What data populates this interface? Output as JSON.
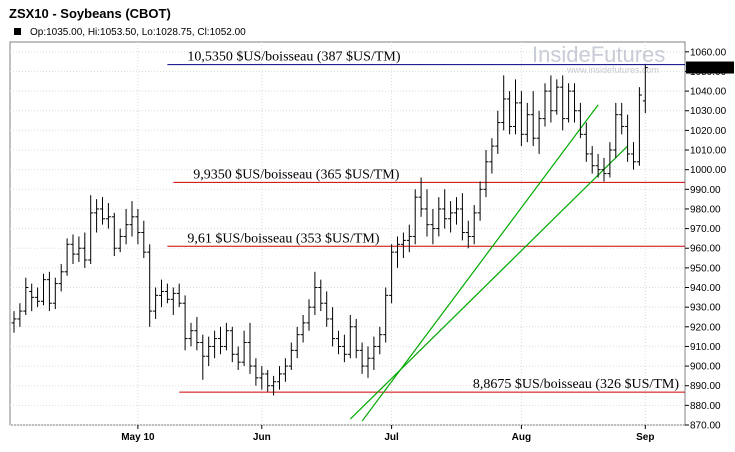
{
  "chart_data": {
    "type": "ohlc",
    "title": "ZSX10 - Soybeans (CBOT)",
    "ohlc_summary": "Op:1035.00, Hi:1053.50, Lo:1028.75, Cl:1052.00",
    "watermark": "InsideFutures",
    "watermark_url": "www.insidefutures.com",
    "last_price_label": "1052.00",
    "last_price": 1052.0,
    "ylim": [
      870,
      1065
    ],
    "yticks": [
      870,
      880,
      890,
      900,
      910,
      920,
      930,
      940,
      950,
      960,
      970,
      980,
      990,
      1000,
      1010,
      1020,
      1030,
      1040,
      1050,
      1060
    ],
    "grid": true,
    "x_labels": [
      {
        "label": "May 10",
        "index": 21
      },
      {
        "label": "Jun",
        "index": 42
      },
      {
        "label": "Jul",
        "index": 64
      },
      {
        "label": "Aug",
        "index": 86
      },
      {
        "label": "Sep",
        "index": 107
      }
    ],
    "levels": [
      {
        "label": "10,5350 $US/boisseau (387 $US/TM)",
        "value": 1053.5,
        "color": "#000080",
        "x_start_index": 26
      },
      {
        "label": "9,9350 $US/boisseau (365 $US/TM)",
        "value": 993.5,
        "color": "#cc0000",
        "x_start_index": 27
      },
      {
        "label": "9,61 $US/boisseau (353 $US/TM)",
        "value": 961,
        "color": "#cc0000",
        "x_start_index": 26
      },
      {
        "label": "8,8675 $US/boisseau (326 $US/TM)",
        "value": 886.75,
        "color": "#cc0000",
        "x_start_index": 28
      }
    ],
    "trendlines": [
      {
        "from_index": 57,
        "from_value": 873,
        "to_index": 104,
        "to_value": 1012,
        "color": "#00aa00"
      },
      {
        "from_index": 59,
        "from_value": 872,
        "to_index": 99,
        "to_value": 1033,
        "color": "#00aa00"
      }
    ],
    "bars": [
      {
        "o": 922,
        "h": 928,
        "l": 917,
        "c": 924
      },
      {
        "o": 924,
        "h": 932,
        "l": 920,
        "c": 928
      },
      {
        "o": 928,
        "h": 945,
        "l": 926,
        "c": 940
      },
      {
        "o": 938,
        "h": 942,
        "l": 928,
        "c": 935
      },
      {
        "o": 935,
        "h": 940,
        "l": 930,
        "c": 933
      },
      {
        "o": 933,
        "h": 947,
        "l": 931,
        "c": 944
      },
      {
        "o": 944,
        "h": 948,
        "l": 928,
        "c": 932
      },
      {
        "o": 932,
        "h": 945,
        "l": 929,
        "c": 942
      },
      {
        "o": 942,
        "h": 952,
        "l": 938,
        "c": 948
      },
      {
        "o": 948,
        "h": 965,
        "l": 946,
        "c": 962
      },
      {
        "o": 962,
        "h": 967,
        "l": 952,
        "c": 957
      },
      {
        "o": 957,
        "h": 966,
        "l": 953,
        "c": 960
      },
      {
        "o": 960,
        "h": 968,
        "l": 950,
        "c": 954
      },
      {
        "o": 954,
        "h": 987,
        "l": 952,
        "c": 978
      },
      {
        "o": 978,
        "h": 985,
        "l": 968,
        "c": 980
      },
      {
        "o": 980,
        "h": 986,
        "l": 972,
        "c": 975
      },
      {
        "o": 975,
        "h": 983,
        "l": 970,
        "c": 976
      },
      {
        "o": 976,
        "h": 978,
        "l": 956,
        "c": 960
      },
      {
        "o": 960,
        "h": 970,
        "l": 958,
        "c": 966
      },
      {
        "o": 966,
        "h": 980,
        "l": 962,
        "c": 972
      },
      {
        "o": 972,
        "h": 984,
        "l": 966,
        "c": 976
      },
      {
        "o": 976,
        "h": 980,
        "l": 962,
        "c": 968
      },
      {
        "o": 968,
        "h": 974,
        "l": 955,
        "c": 958
      },
      {
        "o": 958,
        "h": 962,
        "l": 920,
        "c": 928
      },
      {
        "o": 928,
        "h": 940,
        "l": 924,
        "c": 936
      },
      {
        "o": 936,
        "h": 944,
        "l": 930,
        "c": 938
      },
      {
        "o": 938,
        "h": 942,
        "l": 932,
        "c": 934
      },
      {
        "o": 934,
        "h": 940,
        "l": 926,
        "c": 937
      },
      {
        "o": 937,
        "h": 942,
        "l": 930,
        "c": 932
      },
      {
        "o": 932,
        "h": 936,
        "l": 908,
        "c": 914
      },
      {
        "o": 914,
        "h": 922,
        "l": 910,
        "c": 918
      },
      {
        "o": 918,
        "h": 925,
        "l": 908,
        "c": 912
      },
      {
        "o": 912,
        "h": 916,
        "l": 893,
        "c": 905
      },
      {
        "o": 905,
        "h": 915,
        "l": 900,
        "c": 910
      },
      {
        "o": 910,
        "h": 918,
        "l": 904,
        "c": 914
      },
      {
        "o": 914,
        "h": 920,
        "l": 906,
        "c": 910
      },
      {
        "o": 910,
        "h": 922,
        "l": 908,
        "c": 918
      },
      {
        "o": 918,
        "h": 920,
        "l": 902,
        "c": 906
      },
      {
        "o": 906,
        "h": 910,
        "l": 898,
        "c": 902
      },
      {
        "o": 902,
        "h": 918,
        "l": 900,
        "c": 912
      },
      {
        "o": 912,
        "h": 922,
        "l": 896,
        "c": 900
      },
      {
        "o": 900,
        "h": 904,
        "l": 890,
        "c": 894
      },
      {
        "o": 894,
        "h": 900,
        "l": 888,
        "c": 896
      },
      {
        "o": 896,
        "h": 898,
        "l": 887,
        "c": 890
      },
      {
        "o": 890,
        "h": 895,
        "l": 885,
        "c": 892
      },
      {
        "o": 892,
        "h": 900,
        "l": 888,
        "c": 896
      },
      {
        "o": 896,
        "h": 904,
        "l": 892,
        "c": 900
      },
      {
        "o": 900,
        "h": 912,
        "l": 898,
        "c": 908
      },
      {
        "o": 908,
        "h": 920,
        "l": 904,
        "c": 916
      },
      {
        "o": 916,
        "h": 926,
        "l": 912,
        "c": 922
      },
      {
        "o": 922,
        "h": 934,
        "l": 918,
        "c": 930
      },
      {
        "o": 930,
        "h": 948,
        "l": 926,
        "c": 940
      },
      {
        "o": 940,
        "h": 944,
        "l": 928,
        "c": 932
      },
      {
        "o": 932,
        "h": 938,
        "l": 920,
        "c": 924
      },
      {
        "o": 924,
        "h": 930,
        "l": 910,
        "c": 914
      },
      {
        "o": 914,
        "h": 918,
        "l": 906,
        "c": 910
      },
      {
        "o": 910,
        "h": 916,
        "l": 902,
        "c": 906
      },
      {
        "o": 906,
        "h": 926,
        "l": 904,
        "c": 920
      },
      {
        "o": 920,
        "h": 924,
        "l": 904,
        "c": 908
      },
      {
        "o": 908,
        "h": 912,
        "l": 896,
        "c": 900
      },
      {
        "o": 900,
        "h": 910,
        "l": 894,
        "c": 904
      },
      {
        "o": 904,
        "h": 915,
        "l": 898,
        "c": 910
      },
      {
        "o": 910,
        "h": 920,
        "l": 906,
        "c": 916
      },
      {
        "o": 916,
        "h": 940,
        "l": 912,
        "c": 936
      },
      {
        "o": 936,
        "h": 962,
        "l": 932,
        "c": 958
      },
      {
        "o": 958,
        "h": 966,
        "l": 950,
        "c": 962
      },
      {
        "o": 962,
        "h": 968,
        "l": 955,
        "c": 964
      },
      {
        "o": 964,
        "h": 972,
        "l": 958,
        "c": 966
      },
      {
        "o": 966,
        "h": 990,
        "l": 962,
        "c": 986
      },
      {
        "o": 986,
        "h": 996,
        "l": 976,
        "c": 980
      },
      {
        "o": 980,
        "h": 990,
        "l": 966,
        "c": 972
      },
      {
        "o": 972,
        "h": 980,
        "l": 962,
        "c": 970
      },
      {
        "o": 970,
        "h": 986,
        "l": 966,
        "c": 980
      },
      {
        "o": 980,
        "h": 990,
        "l": 970,
        "c": 975
      },
      {
        "o": 975,
        "h": 984,
        "l": 968,
        "c": 978
      },
      {
        "o": 978,
        "h": 986,
        "l": 972,
        "c": 980
      },
      {
        "o": 980,
        "h": 988,
        "l": 964,
        "c": 968
      },
      {
        "o": 968,
        "h": 974,
        "l": 960,
        "c": 966
      },
      {
        "o": 966,
        "h": 982,
        "l": 962,
        "c": 978
      },
      {
        "o": 978,
        "h": 994,
        "l": 974,
        "c": 990
      },
      {
        "o": 990,
        "h": 1010,
        "l": 986,
        "c": 1004
      },
      {
        "o": 1004,
        "h": 1016,
        "l": 998,
        "c": 1012
      },
      {
        "o": 1012,
        "h": 1030,
        "l": 1008,
        "c": 1024
      },
      {
        "o": 1024,
        "h": 1048,
        "l": 1020,
        "c": 1036
      },
      {
        "o": 1036,
        "h": 1040,
        "l": 1018,
        "c": 1022
      },
      {
        "o": 1022,
        "h": 1046,
        "l": 1018,
        "c": 1034
      },
      {
        "o": 1034,
        "h": 1040,
        "l": 1012,
        "c": 1018
      },
      {
        "o": 1018,
        "h": 1034,
        "l": 1014,
        "c": 1028
      },
      {
        "o": 1028,
        "h": 1040,
        "l": 1012,
        "c": 1016
      },
      {
        "o": 1016,
        "h": 1030,
        "l": 1008,
        "c": 1026
      },
      {
        "o": 1026,
        "h": 1044,
        "l": 1022,
        "c": 1040
      },
      {
        "o": 1040,
        "h": 1048,
        "l": 1024,
        "c": 1030
      },
      {
        "o": 1030,
        "h": 1046,
        "l": 1028,
        "c": 1042
      },
      {
        "o": 1042,
        "h": 1048,
        "l": 1020,
        "c": 1026
      },
      {
        "o": 1026,
        "h": 1044,
        "l": 1024,
        "c": 1040
      },
      {
        "o": 1040,
        "h": 1044,
        "l": 1024,
        "c": 1030
      },
      {
        "o": 1030,
        "h": 1034,
        "l": 1016,
        "c": 1018
      },
      {
        "o": 1018,
        "h": 1024,
        "l": 1004,
        "c": 1008
      },
      {
        "o": 1008,
        "h": 1012,
        "l": 998,
        "c": 1002
      },
      {
        "o": 1002,
        "h": 1008,
        "l": 996,
        "c": 1000
      },
      {
        "o": 1000,
        "h": 1006,
        "l": 994,
        "c": 998
      },
      {
        "o": 998,
        "h": 1014,
        "l": 996,
        "c": 1010
      },
      {
        "o": 1010,
        "h": 1034,
        "l": 1006,
        "c": 1028
      },
      {
        "o": 1028,
        "h": 1034,
        "l": 1018,
        "c": 1022
      },
      {
        "o": 1022,
        "h": 1028,
        "l": 1004,
        "c": 1008
      },
      {
        "o": 1008,
        "h": 1014,
        "l": 1000,
        "c": 1004
      },
      {
        "o": 1004,
        "h": 1042,
        "l": 1002,
        "c": 1038
      },
      {
        "o": 1035,
        "h": 1053.5,
        "l": 1028.75,
        "c": 1052
      }
    ]
  }
}
